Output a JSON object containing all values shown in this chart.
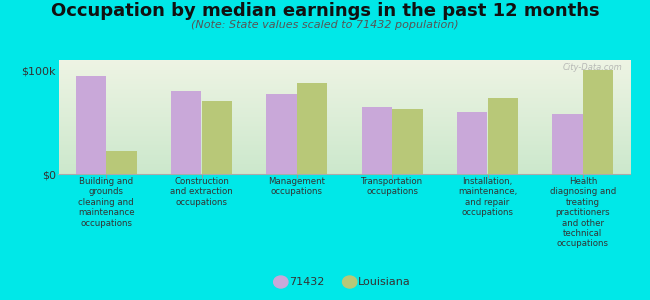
{
  "title": "Occupation by median earnings in the past 12 months",
  "subtitle": "(Note: State values scaled to 71432 population)",
  "categories": [
    "Building and\ngrounds\ncleaning and\nmaintenance\noccupations",
    "Construction\nand extraction\noccupations",
    "Management\noccupations",
    "Transportation\noccupations",
    "Installation,\nmaintenance,\nand repair\noccupations",
    "Health\ndiagnosing and\ntreating\npractitioners\nand other\ntechnical\noccupations"
  ],
  "values_71432": [
    95000,
    80000,
    77000,
    65000,
    60000,
    58000
  ],
  "values_louisiana": [
    22000,
    70000,
    88000,
    63000,
    73000,
    100000
  ],
  "ylim": [
    0,
    110000
  ],
  "yticks": [
    0,
    100000
  ],
  "ytick_labels": [
    "$0",
    "$100k"
  ],
  "color_71432": "#c9a8d9",
  "color_louisiana": "#b8c878",
  "background_color": "#00e8e8",
  "plot_bg_top": "#eef4e4",
  "plot_bg_bottom": "#cce8cc",
  "legend_label_71432": "71432",
  "legend_label_louisiana": "Louisiana",
  "watermark": "City-Data.com",
  "bar_width": 0.32,
  "title_fontsize": 13,
  "subtitle_fontsize": 8
}
